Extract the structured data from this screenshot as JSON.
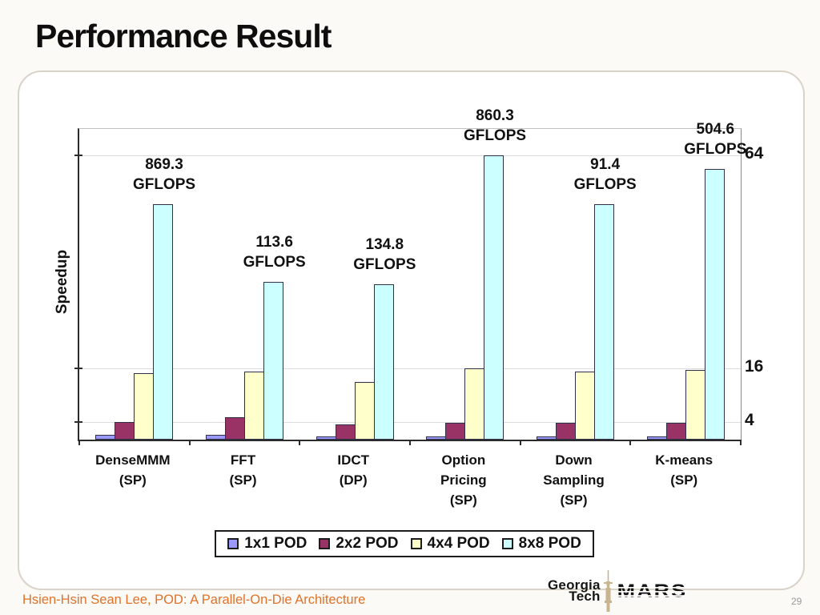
{
  "slide": {
    "title": "Performance Result",
    "footer_citation": "Hsien-Hsin Sean Lee, POD: A Parallel-On-Die Architecture",
    "page_number": "29"
  },
  "logos": {
    "georgia": "Georgia",
    "tech": "Tech",
    "mars": "MARS"
  },
  "colors": {
    "series": [
      "#9999FF",
      "#993366",
      "#FFFFCC",
      "#CCFFFF"
    ],
    "bar_border": "#30304a",
    "footer_orange": "#E0722A",
    "gridline": "#DCDCDC"
  },
  "chart_data": {
    "type": "bar",
    "title": "",
    "xlabel": "",
    "ylabel": "Speedup",
    "ylim": [
      0,
      70
    ],
    "yticks": [
      4,
      16,
      64
    ],
    "grid": true,
    "legend_position": "bottom",
    "categories": [
      [
        "DenseMMM",
        "(SP)"
      ],
      [
        "FFT",
        "(SP)"
      ],
      [
        "IDCT",
        "(DP)"
      ],
      [
        "Option",
        "Pricing",
        "(SP)"
      ],
      [
        "Down",
        "Sampling",
        "(SP)"
      ],
      [
        "K-means",
        "(SP)"
      ]
    ],
    "series": [
      {
        "name": "1x1 POD",
        "color": "#9999FF",
        "values": [
          1.0,
          1.0,
          0.8,
          0.8,
          0.8,
          0.8
        ]
      },
      {
        "name": "2x2 POD",
        "color": "#993366",
        "values": [
          4.0,
          5.0,
          3.5,
          3.8,
          3.8,
          3.8
        ]
      },
      {
        "name": "4x4 POD",
        "color": "#FFFFCC",
        "values": [
          15.0,
          15.3,
          13.0,
          16.0,
          15.3,
          15.7
        ]
      },
      {
        "name": "8x8 POD",
        "color": "#CCFFFF",
        "values": [
          53.0,
          35.5,
          35.0,
          64.0,
          53.0,
          61.0
        ]
      }
    ],
    "annotations": [
      {
        "value": "869.3",
        "unit": "GFLOPS"
      },
      {
        "value": "113.6",
        "unit": "GFLOPS"
      },
      {
        "value": "134.8",
        "unit": "GFLOPS"
      },
      {
        "value": "860.3",
        "unit": "GFLOPS"
      },
      {
        "value": "91.4",
        "unit": "GFLOPS"
      },
      {
        "value": "504.6",
        "unit": "GFLOPS"
      }
    ]
  }
}
